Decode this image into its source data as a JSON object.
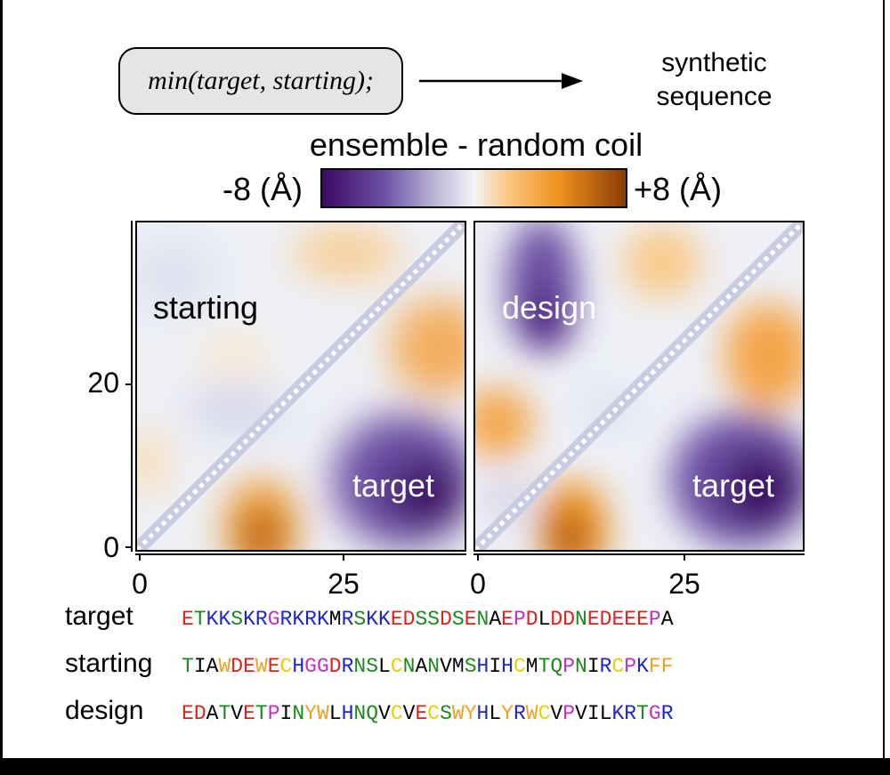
{
  "header": {
    "function_call": "min(target, starting);",
    "result_line1": "synthetic",
    "result_line2": "sequence"
  },
  "colorbar": {
    "title": "ensemble - random coil",
    "min_label": "-8 (Å)",
    "max_label": "+8 (Å)",
    "colors": [
      "#3b0a63",
      "#6a4ea2",
      "#b5b0d4",
      "#f3f3f5",
      "#fbc57e",
      "#ef921d",
      "#8a3c06"
    ]
  },
  "axes": {
    "y_ticks": [
      "20",
      "0"
    ],
    "x_ticks_left": [
      "0",
      "25"
    ],
    "x_ticks_right": [
      "0",
      "25"
    ]
  },
  "panels": [
    {
      "upper_label": "starting",
      "lower_label": "target"
    },
    {
      "upper_label": "design",
      "lower_label": "target"
    }
  ],
  "sequences": [
    {
      "name": "target",
      "sequence": "ETKKSKRGRKRKMRSKKEDSSDSENAEPDLDDNEDEEEPA"
    },
    {
      "name": "starting",
      "sequence": "TIAWDEWECHGGDRNSLCNANVMSHIHCMTQPNIRCPKFF"
    },
    {
      "name": "design",
      "sequence": "EDATVETPINYWLHNQVCVECSWYHLYRWCVPVILKRTGR"
    }
  ],
  "residue_colors": {
    "acidic": "#e0201b",
    "basic": "#1f24c8",
    "polar": "#1a8a1a",
    "hydrophobic": "#000000",
    "aromatic": "#f0a020",
    "proline_glycine": "#c030c0",
    "cysteine": "#e8d000"
  }
}
